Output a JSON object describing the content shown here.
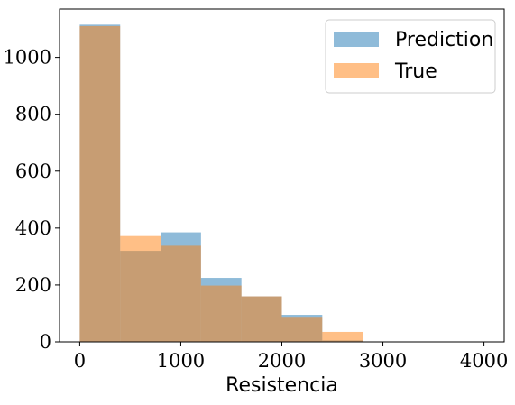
{
  "chart_data": {
    "type": "bar",
    "title": "",
    "xlabel": "Resistencia",
    "ylabel": "",
    "xlim": [
      -200,
      4200
    ],
    "ylim": [
      0,
      1170
    ],
    "x_ticks": [
      0,
      1000,
      2000,
      3000,
      4000
    ],
    "y_ticks": [
      0,
      200,
      400,
      600,
      800,
      1000
    ],
    "bin_edges": [
      0,
      400,
      800,
      1200,
      1600,
      2000,
      2400,
      2800,
      3200,
      3600,
      4000
    ],
    "grid": false,
    "legend_position": "top-right",
    "series": [
      {
        "name": "Prediction",
        "color": "#1f77b4",
        "alpha": 0.5,
        "values": [
          1115,
          320,
          385,
          225,
          160,
          95,
          5,
          0,
          0,
          0
        ]
      },
      {
        "name": "True",
        "color": "#ff7f0e",
        "alpha": 0.5,
        "values": [
          1110,
          372,
          338,
          198,
          160,
          88,
          35,
          0,
          0,
          0
        ]
      }
    ]
  }
}
